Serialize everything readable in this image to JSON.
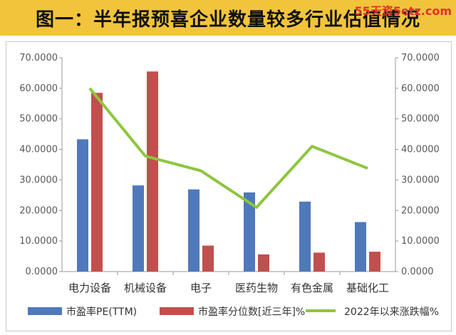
{
  "title": "图一：半年报预喜企业数量较多行业估值情况",
  "watermark": "55天资5etz.com",
  "chart_data": {
    "type": "bar",
    "categories": [
      "电力设备",
      "机械设备",
      "电子",
      "医药生物",
      "有色金属",
      "基础化工"
    ],
    "series": [
      {
        "name": "市盈率PE(TTM)",
        "kind": "bar",
        "axis": "left",
        "color": "#4f79bb",
        "values": [
          43.3,
          28.2,
          26.9,
          25.9,
          22.9,
          16.2
        ]
      },
      {
        "name": "市盈率分位数[近三年]%",
        "kind": "bar",
        "axis": "left",
        "color": "#c0504d",
        "values": [
          58.5,
          65.5,
          8.5,
          5.6,
          6.2,
          6.5
        ]
      },
      {
        "name": "2022年以来涨跌幅%",
        "kind": "line",
        "axis": "right",
        "color": "#8dc63f",
        "values": [
          60.0,
          37.8,
          33.0,
          21.0,
          41.0,
          33.8
        ]
      }
    ],
    "ylim": [
      0,
      70
    ],
    "y2lim": [
      0,
      70
    ],
    "yticks": [
      "0.0000",
      "10.0000",
      "20.0000",
      "30.0000",
      "40.0000",
      "50.0000",
      "60.0000",
      "70.0000"
    ],
    "grid": false,
    "legend_position": "bottom"
  }
}
